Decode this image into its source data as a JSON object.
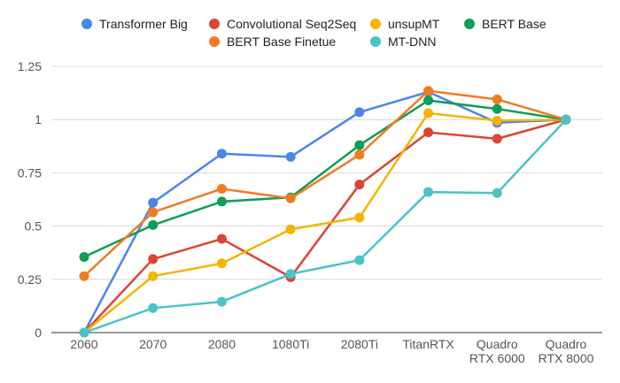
{
  "chart_data": {
    "type": "line",
    "title": "",
    "xlabel": "",
    "ylabel": "",
    "ylim": [
      0,
      1.25
    ],
    "yticks": [
      0,
      0.25,
      0.5,
      0.75,
      1,
      1.25
    ],
    "ytick_labels": [
      "0",
      "0.25",
      "0.5",
      "0.75",
      "1",
      "1.25"
    ],
    "grid": true,
    "legend_position": "top",
    "categories": [
      [
        "2060"
      ],
      [
        "2070"
      ],
      [
        "2080"
      ],
      [
        "1080Ti"
      ],
      [
        "2080Ti"
      ],
      [
        "TitanRTX"
      ],
      [
        "Quadro",
        "RTX 6000"
      ],
      [
        "Quadro",
        "RTX 8000"
      ]
    ],
    "series": [
      {
        "name": "Transformer Big",
        "color": "#4a86e8",
        "values": [
          0,
          0.61,
          0.84,
          0.825,
          1.035,
          1.13,
          0.985,
          1.0
        ]
      },
      {
        "name": "Convolutional Seq2Seq",
        "color": "#db4437",
        "values": [
          0,
          0.345,
          0.44,
          0.26,
          0.695,
          0.94,
          0.91,
          1.0
        ]
      },
      {
        "name": "unsupMT",
        "color": "#f4b400",
        "values": [
          0,
          0.265,
          0.325,
          0.485,
          0.54,
          1.03,
          0.995,
          1.0
        ]
      },
      {
        "name": "BERT Base",
        "color": "#0f9d58",
        "values": [
          0.355,
          0.505,
          0.615,
          0.635,
          0.88,
          1.09,
          1.05,
          1.0
        ]
      },
      {
        "name": "BERT Base Finetue",
        "color": "#f07b22",
        "values": [
          0.265,
          0.565,
          0.675,
          0.63,
          0.835,
          1.135,
          1.095,
          1.0
        ]
      },
      {
        "name": "MT-DNN",
        "color": "#4cc2c8",
        "values": [
          0,
          0.115,
          0.145,
          0.275,
          0.34,
          0.66,
          0.655,
          1.0
        ]
      }
    ]
  }
}
